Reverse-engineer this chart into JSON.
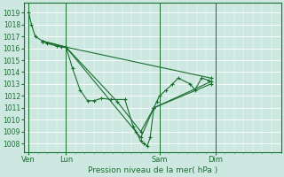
{
  "background_color": "#cce8e0",
  "grid_color": "#b8d8d0",
  "line_color": "#1a6e2e",
  "ylabel_text": "Pression niveau de la mer( hPa )",
  "yticks": [
    1008,
    1009,
    1010,
    1011,
    1012,
    1013,
    1014,
    1015,
    1016,
    1017,
    1018,
    1019
  ],
  "ylim": [
    1007.3,
    1019.8
  ],
  "xtick_labels": [
    "Ven",
    "Lun",
    "Sam",
    "Dim"
  ],
  "xtick_positions": [
    0,
    4,
    14,
    20
  ],
  "xlim": [
    -0.5,
    27
  ],
  "vlines": [
    0,
    4,
    14,
    20
  ],
  "series": [
    [
      0.0,
      1019.0,
      0.3,
      1018.0,
      0.7,
      1017.0,
      1.5,
      1016.6,
      2.0,
      1016.4,
      3.0,
      1016.2,
      3.5,
      1016.1,
      4.0,
      1016.1,
      4.7,
      1014.3,
      5.5,
      1012.5,
      6.3,
      1011.6,
      7.0,
      1011.6,
      7.8,
      1011.8,
      8.8,
      1011.7,
      10.3,
      1011.7,
      11.2,
      1009.4,
      11.5,
      1009.0,
      12.0,
      1008.2,
      12.3,
      1008.0,
      12.7,
      1007.8,
      13.0,
      1008.5,
      13.4,
      1011.0,
      13.7,
      1011.5,
      14.0,
      1012.0,
      14.7,
      1012.5,
      15.4,
      1013.0,
      16.0,
      1013.5,
      17.3,
      1013.0,
      17.8,
      1012.5,
      18.5,
      1013.5,
      19.3,
      1013.3
    ],
    [
      1.5,
      1016.6,
      4.0,
      1016.1,
      19.5,
      1013.5
    ],
    [
      1.5,
      1016.6,
      4.0,
      1016.1,
      12.0,
      1008.5,
      13.4,
      1011.0,
      19.5,
      1013.2
    ],
    [
      1.5,
      1016.6,
      4.0,
      1016.1,
      9.5,
      1011.5,
      12.0,
      1009.0,
      13.4,
      1011.0,
      19.5,
      1013.0
    ]
  ]
}
